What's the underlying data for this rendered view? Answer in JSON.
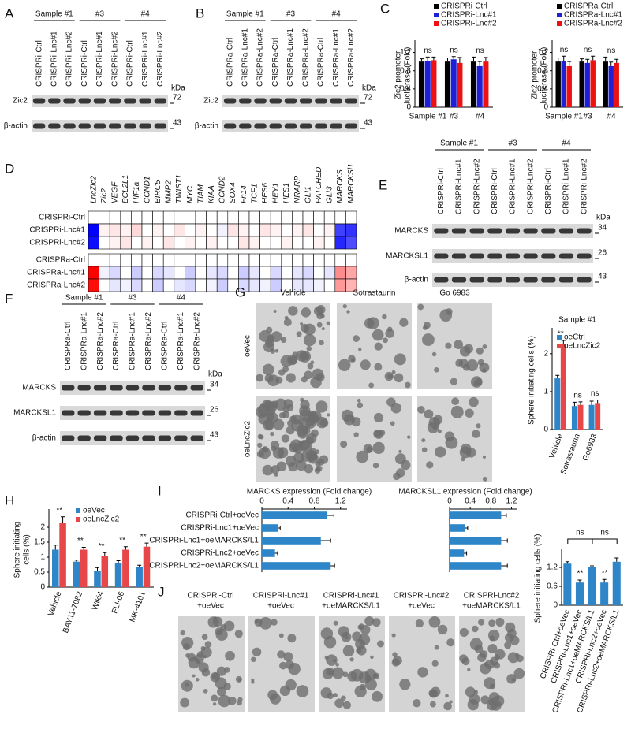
{
  "blots": [
    {
      "label": "A",
      "groups": [
        "Sample #1",
        "#3",
        "#4"
      ],
      "lanes": [
        "CRISPRi-Ctrl",
        "CRISPRi-Lnc#1",
        "CRISPRi-Lnc#2",
        "CRISPRi-Ctrl",
        "CRISPRi-Lnc#1",
        "CRISPRi-Lnc#2",
        "CRISPRi-Ctrl",
        "CRISPRi-Lnc#1",
        "CRISPRi-Lnc#2"
      ],
      "rows": [
        "Zic2",
        "β-actin"
      ],
      "unit": "kDa",
      "markers": [
        "72",
        "43"
      ]
    },
    {
      "label": "B",
      "groups": [
        "Sample #1",
        "#3",
        "#4"
      ],
      "lanes": [
        "CRISPRa-Ctrl",
        "CRISPRa-Lnc#1",
        "CRISPRa-Lnc#2",
        "CRISPRa-Ctrl",
        "CRISPRa-Lnc#1",
        "CRISPRa-Lnc#2",
        "CRISPRa-Ctrl",
        "CRISPRa-Lnc#1",
        "CRISPRa-Lnc#2"
      ],
      "rows": [
        "Zic2",
        "β-actin"
      ],
      "unit": "kDa",
      "markers": [
        "72",
        "43"
      ]
    },
    {
      "label": "E",
      "groups": [
        "Sample #1",
        "#3",
        "#4"
      ],
      "lanes": [
        "CRISPRi-Ctrl",
        "CRISPRi-Lnc#1",
        "CRISPRi-Lnc#2",
        "CRISPRi-Ctrl",
        "CRISPRi-Lnc#1",
        "CRISPRi-Lnc#2",
        "CRISPRi-Ctrl",
        "CRISPRi-Lnc#1",
        "CRISPRi-Lnc#2"
      ],
      "rows": [
        "MARCKS",
        "MARCKSL1",
        "β-actin"
      ],
      "unit": "kDa",
      "markers": [
        "34",
        "26",
        "43"
      ]
    },
    {
      "label": "F",
      "groups": [
        "Sample #1",
        "#3",
        "#4"
      ],
      "lanes": [
        "CRISPRa-Ctrl",
        "CRISPRa-Lnc#1",
        "CRISPRa-Lnc#2",
        "CRISPRa-Ctrl",
        "CRISPRa-Lnc#1",
        "CRISPRa-Lnc#2",
        "CRISPRa-Ctrl",
        "CRISPRa-Lnc#1",
        "CRISPRa-Lnc#2"
      ],
      "rows": [
        "MARCKS",
        "MARCKSL1",
        "β-actin"
      ],
      "unit": "kDa",
      "markers": [
        "34",
        "26",
        "43"
      ]
    }
  ],
  "heatmap": {
    "label": "D",
    "genes": [
      "LncZic2",
      "Zic2",
      "VEGF",
      "BCL2L1",
      "HIF1a",
      "CCND1",
      "BIRC5",
      "MMP2",
      "TWIST1",
      "MYC",
      "TIAM",
      "KIAA",
      "CCND2",
      "SOX4",
      "Fn14",
      "TCF1",
      "HES6",
      "HEY1",
      "HES1",
      "NRARP",
      "GLI1",
      "PATCHED",
      "GLI3",
      "MARCKS",
      "MARCKSl1"
    ],
    "rows": [
      "CRISPRi-Ctrl",
      "CRISPRi-Lnc#1",
      "CRISPRi-Lnc#2",
      "CRISPRa-Ctrl",
      "CRISPRa-Lnc#1",
      "CRISPRa-Lnc#2"
    ],
    "values": [
      [
        0,
        0,
        0,
        0,
        0,
        0,
        0,
        0,
        0,
        0,
        0,
        0,
        0,
        0,
        0,
        0,
        0,
        0,
        0,
        0,
        0,
        0,
        0,
        0,
        0
      ],
      [
        -1,
        0.05,
        0.1,
        0.05,
        0.15,
        0,
        0.05,
        0,
        0.1,
        0,
        0.05,
        0,
        -0.05,
        0.1,
        0.05,
        0,
        0.1,
        0.05,
        0,
        0.05,
        0.1,
        0,
        0.05,
        -0.75,
        -0.8
      ],
      [
        -0.95,
        0,
        0.05,
        0.1,
        0,
        0.05,
        0,
        0.1,
        0,
        0.05,
        0,
        0.05,
        0,
        0,
        0.1,
        0.05,
        0,
        0,
        0.05,
        0,
        0,
        0.05,
        0,
        -0.85,
        -0.7
      ],
      [
        0,
        0,
        0,
        0,
        0,
        0,
        0,
        0,
        0,
        0,
        0,
        0,
        0,
        0,
        0,
        0,
        0,
        0,
        0,
        0,
        0,
        0,
        0,
        0,
        0
      ],
      [
        1,
        -0.05,
        -0.15,
        0,
        -0.2,
        0,
        -0.15,
        -0.1,
        0,
        -0.2,
        0,
        -0.1,
        -0.15,
        0,
        -0.2,
        -0.1,
        0,
        -0.15,
        0,
        -0.1,
        -0.15,
        0,
        -0.1,
        0.45,
        0.35
      ],
      [
        0.95,
        0,
        -0.1,
        -0.05,
        -0.15,
        0,
        -0.2,
        0,
        -0.1,
        -0.15,
        0,
        -0.05,
        -0.2,
        0,
        -0.15,
        -0.1,
        -0.05,
        -0.2,
        0,
        -0.1,
        -0.1,
        -0.05,
        0,
        0.4,
        0.3
      ]
    ]
  },
  "micrographs": [
    {
      "label": "G",
      "columns": [
        "Vehicle",
        "Sotrastaurin",
        "Go 6983"
      ],
      "rows": [
        "oeVec",
        "oeLncZic2"
      ]
    },
    {
      "label": "J",
      "captions": [
        [
          "CRISPRi-Ctrl",
          "+oeVec"
        ],
        [
          "CRISPRi-Lnc#1",
          "+oeVec"
        ],
        [
          "CRISPRi-Lnc#1",
          "+oeMARCKS/L1"
        ],
        [
          "CRISPRi-Lnc#2",
          "+oeVec"
        ],
        [
          "CRISPRi-Lnc#2",
          "+oeMARCKS/L1"
        ]
      ]
    }
  ],
  "chart_data": [
    {
      "type": "bar",
      "panel": "C",
      "ylabel": [
        "Zic2 promoter",
        "luciferase (Fold)"
      ],
      "categories": [
        "Sample #1",
        "#3",
        "#4"
      ],
      "series": [
        {
          "name": "CRISPRi-Ctrl",
          "color": "#000000",
          "values": [
            1,
            1,
            1
          ],
          "errors": [
            0.06,
            0.08,
            0.1
          ]
        },
        {
          "name": "CRISPRi-Lnc#1",
          "color": "#1f1fd6",
          "values": [
            1.02,
            1.05,
            0.9
          ],
          "errors": [
            0.08,
            0.06,
            0.1
          ]
        },
        {
          "name": "CRISPRi-Lnc#2",
          "color": "#ee1111",
          "values": [
            1.03,
            0.97,
            1.0
          ],
          "errors": [
            0.07,
            0.12,
            0.09
          ]
        }
      ],
      "annotations": [
        "ns",
        "ns",
        "ns"
      ],
      "ylim": [
        0,
        1.4
      ],
      "yticks": [
        0,
        0.4,
        0.8,
        1.2
      ]
    },
    {
      "type": "bar",
      "ylabel": [
        "Zic2 promoter",
        "luciferase (Fold)"
      ],
      "categories": [
        "Sample #1",
        "#3",
        "#4"
      ],
      "series": [
        {
          "name": "CRISPRa-Ctrl",
          "color": "#000000",
          "values": [
            1,
            1,
            1
          ],
          "errors": [
            0.08,
            0.06,
            0.1
          ]
        },
        {
          "name": "CRISPRa-Lnc#1",
          "color": "#1f1fd6",
          "values": [
            1.02,
            0.97,
            0.9
          ],
          "errors": [
            0.1,
            0.08,
            0.09
          ]
        },
        {
          "name": "CRISPRa-Lnc#2",
          "color": "#ee1111",
          "values": [
            0.9,
            1.03,
            0.97
          ],
          "errors": [
            0.1,
            0.09,
            0.08
          ]
        }
      ],
      "annotations": [
        "ns",
        "ns",
        "ns"
      ],
      "ylim": [
        0,
        1.4
      ],
      "yticks": [
        0,
        0.4,
        0.8,
        1.2
      ]
    },
    {
      "type": "bar",
      "title": "Sample #1",
      "ylabel": [
        "Sphere initiating cells (%)"
      ],
      "categories": [
        "Vehicle",
        "Sotrastaurin",
        "Go6983"
      ],
      "series": [
        {
          "name": "oeCtrl",
          "color": "#2e86c8",
          "values": [
            1.35,
            0.62,
            0.65
          ],
          "errors": [
            0.08,
            0.1,
            0.1
          ]
        },
        {
          "name": "oeLncZic2",
          "color": "#e8474a",
          "values": [
            2.25,
            0.65,
            0.7
          ],
          "errors": [
            0.1,
            0.08,
            0.08
          ]
        }
      ],
      "annotations": [
        "**",
        "ns",
        "ns"
      ],
      "ylim": [
        0,
        2.6
      ],
      "yticks": [
        0,
        1,
        2
      ]
    },
    {
      "type": "bar",
      "panel": "H",
      "ylabel": [
        "Sphere initiating",
        "cells (%)"
      ],
      "categories": [
        "Vehicle",
        "BAY11-7082",
        "Wiki4",
        "FLI-06",
        "MK-4101"
      ],
      "series": [
        {
          "name": "oeVec",
          "color": "#2e86c8",
          "values": [
            1.25,
            0.85,
            0.55,
            0.8,
            0.68
          ],
          "errors": [
            0.15,
            0.05,
            0.1,
            0.08,
            0.05
          ]
        },
        {
          "name": "oeLncZic2",
          "color": "#e8474a",
          "values": [
            2.15,
            1.25,
            1.05,
            1.25,
            1.35
          ],
          "errors": [
            0.2,
            0.08,
            0.1,
            0.1,
            0.12
          ]
        }
      ],
      "annotations": [
        "**",
        "**",
        "**",
        "**",
        "**"
      ],
      "ylim": [
        0,
        2.5
      ],
      "yticks": [
        0,
        0.5,
        1,
        1.5,
        2
      ]
    },
    {
      "type": "barh",
      "panel": "I",
      "title": "MARCKS expression (Fold change)",
      "categories": [
        "CRISPRi-Ctrl+oeVec",
        "CRISPRi-Lnc1+oeVec",
        "CRISPRi-Lnc1+oeMARCKS/L1",
        "CRISPRi-Lnc2+oeVec",
        "CRISPRi-Lnc2+oeMARCKS/L1"
      ],
      "color": "#2e86c8",
      "values": [
        1.0,
        0.25,
        0.9,
        0.2,
        1.05
      ],
      "errors": [
        0.1,
        0.03,
        0.15,
        0.04,
        0.06
      ],
      "xlim": [
        0,
        1.3
      ],
      "xticks": [
        0,
        0.4,
        0.8,
        1.2
      ]
    },
    {
      "type": "barh",
      "title": "MARCKSL1 expression (Fold change)",
      "color": "#2e86c8",
      "values": [
        1.0,
        0.3,
        1.0,
        0.28,
        1.0
      ],
      "errors": [
        0.1,
        0.05,
        0.12,
        0.05,
        0.12
      ],
      "xlim": [
        0,
        1.3
      ],
      "xticks": [
        0,
        0.4,
        0.8,
        1.2
      ]
    },
    {
      "type": "bar",
      "ylabel": [
        "Sphere initiating cells (%)"
      ],
      "categories": [
        "CRISPRi-Ctrl+oeVec",
        "CRISPRi-Lnc1+oeVec",
        "CRISPRi-Lnc1+oeMARCKS/L1",
        "CRISPRi-Lnc2+oeVec",
        "CRISPRi-Lnc2+oeMARCKS/L1"
      ],
      "series": [
        {
          "color": "#2e86c8",
          "values": [
            1.32,
            0.72,
            1.2,
            0.72,
            1.38
          ],
          "errors": [
            0.06,
            0.08,
            0.05,
            0.1,
            0.12
          ]
        }
      ],
      "annotations": [
        null,
        "**",
        null,
        "**",
        null
      ],
      "brackets": [
        "ns",
        "ns"
      ],
      "ylim": [
        0,
        1.7
      ],
      "yticks": [
        0,
        0.6,
        1.2
      ]
    }
  ]
}
